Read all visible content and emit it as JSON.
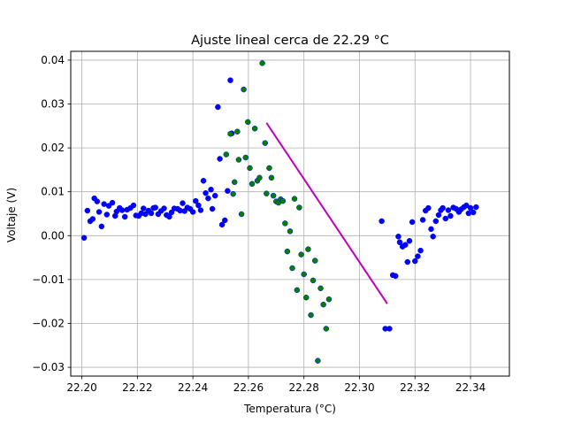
{
  "chart_data": {
    "type": "scatter",
    "title": "Ajuste lineal cerca de 22.29 °C",
    "xlabel": "Temperatura (°C)",
    "ylabel": "Voltaje (V)",
    "xlim": [
      22.196,
      22.354
    ],
    "ylim": [
      -0.032,
      0.042
    ],
    "xticks": [
      "22.20",
      "22.22",
      "22.24",
      "22.26",
      "22.28",
      "22.30",
      "22.32",
      "22.34"
    ],
    "yticks": [
      "−0.03",
      "−0.02",
      "−0.01",
      "0.00",
      "0.01",
      "0.02",
      "0.03",
      "0.04"
    ],
    "grid": true,
    "series": [
      {
        "color": "#0000ff",
        "marker": "circle",
        "points": [
          [
            22.2008,
            -0.0005
          ],
          [
            22.202,
            0.0057
          ],
          [
            22.203,
            0.0033
          ],
          [
            22.2039,
            0.0038
          ],
          [
            22.2045,
            0.0085
          ],
          [
            22.2055,
            0.0078
          ],
          [
            22.2062,
            0.0054
          ],
          [
            22.2071,
            0.0021
          ],
          [
            22.208,
            0.0072
          ],
          [
            22.209,
            0.0048
          ],
          [
            22.2097,
            0.0068
          ],
          [
            22.211,
            0.0075
          ],
          [
            22.212,
            0.0045
          ],
          [
            22.2125,
            0.0055
          ],
          [
            22.2136,
            0.0063
          ],
          [
            22.2145,
            0.0058
          ],
          [
            22.2155,
            0.0043
          ],
          [
            22.2163,
            0.0059
          ],
          [
            22.2175,
            0.0063
          ],
          [
            22.2186,
            0.0069
          ],
          [
            22.2195,
            0.0046
          ],
          [
            22.2205,
            0.0045
          ],
          [
            22.2214,
            0.0051
          ],
          [
            22.2222,
            0.0062
          ],
          [
            22.2229,
            0.0049
          ],
          [
            22.224,
            0.0057
          ],
          [
            22.225,
            0.0051
          ],
          [
            22.2258,
            0.0063
          ],
          [
            22.2265,
            0.0064
          ],
          [
            22.2275,
            0.0049
          ],
          [
            22.2285,
            0.0056
          ],
          [
            22.2296,
            0.0062
          ],
          [
            22.2305,
            0.0047
          ],
          [
            22.2315,
            0.0043
          ],
          [
            22.2323,
            0.0053
          ],
          [
            22.2333,
            0.0062
          ],
          [
            22.2345,
            0.0061
          ],
          [
            22.2354,
            0.0057
          ],
          [
            22.2363,
            0.0074
          ],
          [
            22.237,
            0.0056
          ],
          [
            22.238,
            0.0064
          ],
          [
            22.239,
            0.0061
          ],
          [
            22.24,
            0.0054
          ],
          [
            22.241,
            0.0079
          ],
          [
            22.242,
            0.0069
          ],
          [
            22.2428,
            0.0058
          ],
          [
            22.2438,
            0.0125
          ],
          [
            22.2446,
            0.0097
          ],
          [
            22.2455,
            0.0085
          ],
          [
            22.2465,
            0.0105
          ],
          [
            22.247,
            0.0061
          ],
          [
            22.248,
            0.0091
          ],
          [
            22.249,
            0.0293
          ],
          [
            22.2497,
            0.0175
          ],
          [
            22.2505,
            0.0025
          ],
          [
            22.2515,
            0.0035
          ],
          [
            22.2525,
            0.0102
          ],
          [
            22.2535,
            0.0354
          ],
          [
            22.254,
            0.0233
          ],
          [
            22.308,
            0.0033
          ],
          [
            22.3093,
            -0.0212
          ],
          [
            22.3108,
            -0.0212
          ],
          [
            22.312,
            -0.009
          ],
          [
            22.313,
            -0.0092
          ],
          [
            22.314,
            -0.0002
          ],
          [
            22.3145,
            -0.0015
          ],
          [
            22.3155,
            -0.0025
          ],
          [
            22.3165,
            -0.0021
          ],
          [
            22.3173,
            -0.006
          ],
          [
            22.318,
            -0.0012
          ],
          [
            22.319,
            0.0031
          ],
          [
            22.32,
            -0.0058
          ],
          [
            22.321,
            -0.0047
          ],
          [
            22.322,
            -0.0034
          ],
          [
            22.3228,
            0.0036
          ],
          [
            22.3238,
            0.0057
          ],
          [
            22.3248,
            0.0063
          ],
          [
            22.3258,
            0.0015
          ],
          [
            22.3265,
            -0.0002
          ],
          [
            22.3275,
            0.0033
          ],
          [
            22.3285,
            0.0047
          ],
          [
            22.3293,
            0.0058
          ],
          [
            22.33,
            0.0063
          ],
          [
            22.331,
            0.0039
          ],
          [
            22.332,
            0.0058
          ],
          [
            22.3328,
            0.0045
          ],
          [
            22.3338,
            0.0064
          ],
          [
            22.3348,
            0.0061
          ],
          [
            22.3358,
            0.0054
          ],
          [
            22.3366,
            0.006
          ],
          [
            22.3376,
            0.0065
          ],
          [
            22.3385,
            0.0069
          ],
          [
            22.3393,
            0.0051
          ],
          [
            22.34,
            0.0063
          ],
          [
            22.341,
            0.0053
          ],
          [
            22.342,
            0.0065
          ]
        ]
      },
      {
        "color": "#008000",
        "marker": "circle",
        "points": [
          [
            22.252,
            0.0185
          ],
          [
            22.2535,
            0.0232
          ],
          [
            22.2545,
            0.0095
          ],
          [
            22.255,
            0.0122
          ],
          [
            22.256,
            0.0237
          ],
          [
            22.2565,
            0.0173
          ],
          [
            22.2575,
            0.0049
          ],
          [
            22.2583,
            0.0333
          ],
          [
            22.259,
            0.0178
          ],
          [
            22.2598,
            0.0259
          ],
          [
            22.2605,
            0.0154
          ],
          [
            22.2613,
            0.0118
          ],
          [
            22.2623,
            0.0244
          ],
          [
            22.2632,
            0.0125
          ],
          [
            22.264,
            0.0132
          ],
          [
            22.265,
            0.0393
          ],
          [
            22.266,
            0.0211
          ],
          [
            22.2665,
            0.0096
          ],
          [
            22.2675,
            0.0154
          ],
          [
            22.2683,
            0.0132
          ],
          [
            22.269,
            0.0091
          ],
          [
            22.27,
            0.0078
          ],
          [
            22.2708,
            0.0075
          ],
          [
            22.2716,
            0.0083
          ],
          [
            22.2724,
            0.0079
          ],
          [
            22.2732,
            0.0028
          ],
          [
            22.274,
            -0.0036
          ],
          [
            22.275,
            0.001
          ],
          [
            22.2758,
            -0.0074
          ],
          [
            22.2766,
            0.0084
          ],
          [
            22.2775,
            -0.0124
          ],
          [
            22.2783,
            0.0064
          ],
          [
            22.279,
            -0.0043
          ],
          [
            22.28,
            -0.0088
          ],
          [
            22.2808,
            -0.0141
          ],
          [
            22.2815,
            -0.0031
          ],
          [
            22.2825,
            -0.0181
          ],
          [
            22.2833,
            -0.0102
          ],
          [
            22.284,
            -0.0057
          ],
          [
            22.285,
            -0.0285
          ],
          [
            22.286,
            -0.012
          ],
          [
            22.287,
            -0.0157
          ],
          [
            22.288,
            -0.0212
          ],
          [
            22.289,
            -0.0145
          ]
        ]
      }
    ],
    "fit_line": {
      "color": "#bf00bf",
      "x": [
        22.2665,
        22.31
      ],
      "y": [
        0.0257,
        -0.0155
      ]
    }
  }
}
